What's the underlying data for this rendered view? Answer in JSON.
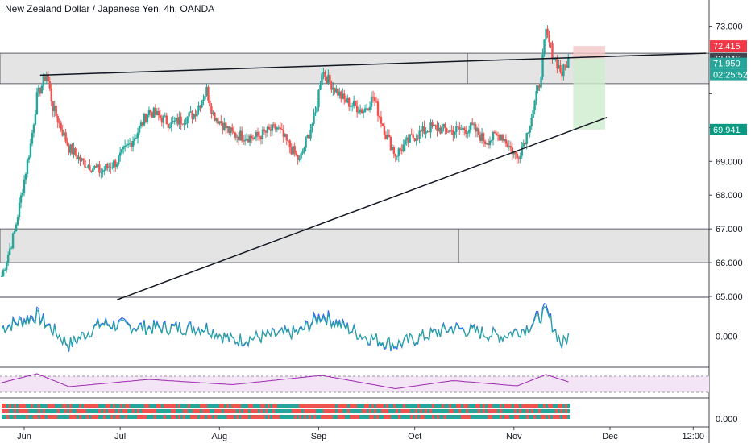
{
  "header": {
    "title": "New Zealand Dollar / Japanese Yen, 4h, OANDA"
  },
  "colors": {
    "up": "#26a69a",
    "down": "#ef5350",
    "zone_fill": "#e0e0e0",
    "stop_fill": "#f4c7c7",
    "target_fill": "#cdeccd",
    "line": "#131722",
    "macd_line": "#2962ff",
    "signal_line": "#26a69a",
    "rsi_line": "#9c27b0",
    "rsi_band": "#f3e5f5"
  },
  "price_tags": [
    {
      "value": "72.415",
      "bg": "#f23645",
      "fg": "#ffffff"
    },
    {
      "value": "72.046",
      "bg": "#434651",
      "fg": "#ffffff"
    },
    {
      "value": "71.950",
      "bg": "#26a69a",
      "fg": "#ffffff"
    },
    {
      "value": "02:25:52",
      "bg": "#26a69a",
      "fg": "#ffffff"
    },
    {
      "value": "69.941",
      "bg": "#089981",
      "fg": "#ffffff"
    }
  ],
  "indicator_labels": {
    "macd_zero": "0.000",
    "bottom_zero": "0.000"
  },
  "chart_data": {
    "type": "candlestick",
    "symbol": "New Zealand Dollar / Japanese Yen",
    "timeframe": "4h",
    "x_labels": [
      "Jun",
      "Jul",
      "Aug",
      "Sep",
      "Oct",
      "Nov",
      "Dec",
      "12:00"
    ],
    "y_ticks": [
      65.0,
      66.0,
      67.0,
      68.0,
      69.0,
      70.0,
      71.0,
      72.0,
      73.0
    ],
    "y_tick_labels": [
      "65.000",
      "66.000",
      "67.000",
      "68.000",
      "69.000",
      "",
      "",
      "",
      "73.000"
    ],
    "ylim": [
      65.0,
      73.3
    ],
    "close_path": [
      [
        "2020-05-25",
        65.6
      ],
      [
        "2020-05-29",
        66.9
      ],
      [
        "2020-06-03",
        69.5
      ],
      [
        "2020-06-05",
        70.9
      ],
      [
        "2020-06-08",
        71.6
      ],
      [
        "2020-06-10",
        70.6
      ],
      [
        "2020-06-15",
        69.4
      ],
      [
        "2020-06-19",
        69.0
      ],
      [
        "2020-06-25",
        68.7
      ],
      [
        "2020-06-30",
        69.0
      ],
      [
        "2020-07-06",
        69.8
      ],
      [
        "2020-07-10",
        70.5
      ],
      [
        "2020-07-17",
        70.1
      ],
      [
        "2020-07-24",
        70.4
      ],
      [
        "2020-07-28",
        71.1
      ],
      [
        "2020-07-30",
        70.4
      ],
      [
        "2020-08-05",
        69.8
      ],
      [
        "2020-08-12",
        69.7
      ],
      [
        "2020-08-19",
        70.0
      ],
      [
        "2020-08-26",
        69.0
      ],
      [
        "2020-08-31",
        70.4
      ],
      [
        "2020-09-02",
        71.7
      ],
      [
        "2020-09-04",
        71.4
      ],
      [
        "2020-09-09",
        70.8
      ],
      [
        "2020-09-15",
        70.5
      ],
      [
        "2020-09-18",
        70.9
      ],
      [
        "2020-09-22",
        69.8
      ],
      [
        "2020-09-25",
        69.2
      ],
      [
        "2020-09-30",
        69.7
      ],
      [
        "2020-10-06",
        70.0
      ],
      [
        "2020-10-13",
        69.9
      ],
      [
        "2020-10-19",
        70.0
      ],
      [
        "2020-10-23",
        69.6
      ],
      [
        "2020-10-28",
        69.8
      ],
      [
        "2020-11-02",
        69.1
      ],
      [
        "2020-11-05",
        69.8
      ],
      [
        "2020-11-09",
        71.3
      ],
      [
        "2020-11-11",
        72.8
      ],
      [
        "2020-11-13",
        72.2
      ],
      [
        "2020-11-16",
        71.6
      ],
      [
        "2020-11-18",
        72.0
      ]
    ],
    "zones": [
      {
        "from": "2020-05-25",
        "to": "2020-12-31",
        "low": 71.3,
        "high": 72.2
      },
      {
        "from": "2020-05-25",
        "to": "2020-12-31",
        "low": 66.0,
        "high": 67.0
      }
    ],
    "trendlines": [
      {
        "x1": "2020-06-06",
        "y1": 71.55,
        "x2": "2020-12-31",
        "y2": 72.2
      },
      {
        "x1": "2020-06-30",
        "y1": 64.9,
        "x2": "2020-11-30",
        "y2": 70.3
      }
    ],
    "position": {
      "from": "2020-11-18",
      "to": "2020-11-30",
      "entry": 72.046,
      "stop": 72.415,
      "target": 69.941
    },
    "macd_path": [
      [
        "2020-05-25",
        0.2
      ],
      [
        "2020-06-05",
        0.5
      ],
      [
        "2020-06-15",
        -0.2
      ],
      [
        "2020-06-25",
        0.3
      ],
      [
        "2020-07-10",
        0.2
      ],
      [
        "2020-07-28",
        0.2
      ],
      [
        "2020-08-05",
        -0.1
      ],
      [
        "2020-08-26",
        0.1
      ],
      [
        "2020-09-02",
        0.5
      ],
      [
        "2020-09-15",
        0.0
      ],
      [
        "2020-09-25",
        -0.2
      ],
      [
        "2020-10-13",
        0.2
      ],
      [
        "2020-10-28",
        0.0
      ],
      [
        "2020-11-05",
        0.2
      ],
      [
        "2020-11-11",
        0.6
      ],
      [
        "2020-11-16",
        -0.2
      ],
      [
        "2020-11-18",
        0.0
      ]
    ],
    "rsi_path": [
      [
        "2020-05-25",
        50
      ],
      [
        "2020-06-05",
        72
      ],
      [
        "2020-06-15",
        40
      ],
      [
        "2020-07-10",
        58
      ],
      [
        "2020-08-05",
        45
      ],
      [
        "2020-09-02",
        68
      ],
      [
        "2020-09-25",
        35
      ],
      [
        "2020-10-13",
        55
      ],
      [
        "2020-11-02",
        42
      ],
      [
        "2020-11-11",
        70
      ],
      [
        "2020-11-18",
        52
      ]
    ]
  }
}
